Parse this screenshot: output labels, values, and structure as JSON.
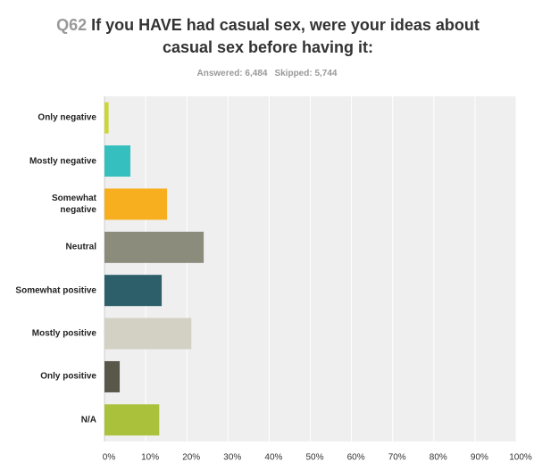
{
  "chart_data": {
    "type": "bar",
    "orientation": "horizontal",
    "question_number": "Q62",
    "title": "If you HAVE had casual sex, were your ideas about casual sex before having it:",
    "answered": "Answered: 6,484",
    "skipped": "Skipped: 5,744",
    "categories": [
      "Only negative",
      "Mostly negative",
      "Somewhat negative",
      "Neutral",
      "Somewhat positive",
      "Mostly positive",
      "Only positive",
      "N/A"
    ],
    "values": [
      1,
      6.3,
      15.2,
      24.1,
      13.9,
      21.1,
      3.7,
      13.3
    ],
    "colors": [
      "#ccd639",
      "#35c0bf",
      "#f7ae1f",
      "#8b8c7b",
      "#2d5f6b",
      "#d2d1c3",
      "#58574a",
      "#a9c13b"
    ],
    "xlim": [
      0,
      100
    ],
    "xticks": [
      {
        "value": 0,
        "label": "0%"
      },
      {
        "value": 10,
        "label": "10%"
      },
      {
        "value": 20,
        "label": "20%"
      },
      {
        "value": 30,
        "label": "30%"
      },
      {
        "value": 40,
        "label": "40%"
      },
      {
        "value": 50,
        "label": "50%"
      },
      {
        "value": 60,
        "label": "60%"
      },
      {
        "value": 70,
        "label": "70%"
      },
      {
        "value": 80,
        "label": "80%"
      },
      {
        "value": 90,
        "label": "90%"
      },
      {
        "value": 100,
        "label": "100%"
      }
    ],
    "grid": true
  }
}
